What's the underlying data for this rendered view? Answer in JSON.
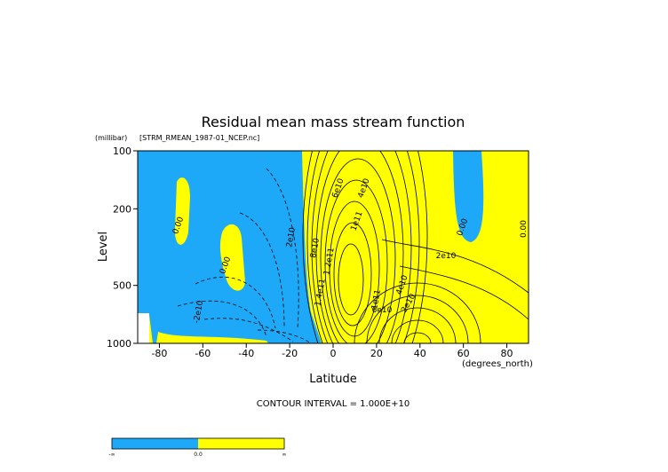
{
  "chart_data": {
    "type": "contour",
    "title": "Residual mean mass stream function",
    "subtitle": "[STRM_RMEAN_1987-01_NCEP.nc]",
    "y_unit": "(millibar)",
    "x_unit": "(degrees_north)",
    "x_label": "Latitude",
    "y_label": "Level",
    "xlim": [
      -90,
      90
    ],
    "xticks": [
      -80,
      -60,
      -40,
      -20,
      0,
      20,
      40,
      60,
      80
    ],
    "ylim": [
      1000,
      100
    ],
    "yticks": [
      100,
      200,
      500,
      1000
    ],
    "y_log": true,
    "contour_note": "CONTOUR INTERVAL = 1.000E+10",
    "contour_labels": [
      "0.00",
      "0.00",
      "0.00",
      "0.00",
      "2e10",
      "-2e10",
      "2e10",
      "4e10",
      "6e10",
      "8e10",
      "1e11",
      "1.2e11",
      "1.4e11",
      "4e10",
      "6e10",
      "1e11",
      "2e10"
    ],
    "colors": {
      "negative": "#1ea9f8",
      "positive": "#ffff00"
    },
    "colorbar_labels": [
      "-∞",
      "0.0",
      "∞"
    ]
  }
}
